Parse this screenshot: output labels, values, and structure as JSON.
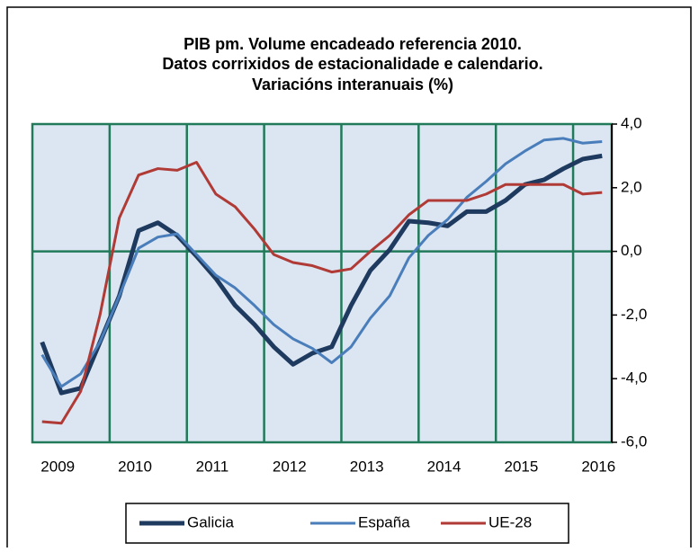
{
  "chart_data": {
    "type": "line",
    "title": [
      "PIB pm. Volume encadeado referencia 2010.",
      "Datos corrixidos de estacionalidade e calendario.",
      "Variacións interanuais (%)"
    ],
    "categories": [
      null,
      "2009",
      null,
      null,
      null,
      "2010",
      null,
      null,
      null,
      "2011",
      null,
      null,
      null,
      "2012",
      null,
      null,
      null,
      "2013",
      null,
      null,
      null,
      "2014",
      null,
      null,
      null,
      "2015",
      null,
      null,
      null,
      "2016"
    ],
    "series": [
      {
        "name": "Galicia",
        "color": "#1f3a5f",
        "values": [
          -2.85,
          -4.45,
          -4.3,
          -2.85,
          -1.4,
          0.65,
          0.9,
          0.5,
          -0.15,
          -0.85,
          -1.7,
          -2.3,
          -3.0,
          -3.55,
          -3.2,
          -3.0,
          -1.7,
          -0.6,
          0.05,
          0.95,
          0.9,
          0.8,
          1.25,
          1.25,
          1.6,
          2.1,
          2.25,
          2.6,
          2.9,
          3.0
        ]
      },
      {
        "name": "España",
        "color": "#4a7ebb",
        "values": [
          -3.25,
          -4.25,
          -3.85,
          -2.85,
          -1.4,
          0.1,
          0.45,
          0.55,
          -0.1,
          -0.75,
          -1.15,
          -1.7,
          -2.3,
          -2.75,
          -3.05,
          -3.5,
          -3.0,
          -2.1,
          -1.4,
          -0.2,
          0.5,
          1.0,
          1.7,
          2.2,
          2.75,
          3.15,
          3.5,
          3.55,
          3.4,
          3.45
        ]
      },
      {
        "name": "UE-28",
        "color": "#b03a36",
        "values": [
          -5.35,
          -5.4,
          -4.4,
          -2.0,
          1.05,
          2.4,
          2.6,
          2.55,
          2.8,
          1.8,
          1.4,
          0.7,
          -0.1,
          -0.35,
          -0.45,
          -0.65,
          -0.55,
          0.0,
          0.5,
          1.15,
          1.6,
          1.6,
          1.6,
          1.8,
          2.1,
          2.1,
          2.1,
          2.1,
          1.8,
          1.85
        ]
      }
    ],
    "ylim": [
      -6,
      4
    ],
    "yticks": [
      {
        "value": -6,
        "label": "-6,0"
      },
      {
        "value": -4,
        "label": "-4,0"
      },
      {
        "value": -2,
        "label": "-2,0"
      },
      {
        "value": 0,
        "label": "0,0"
      },
      {
        "value": 2,
        "label": "2,0"
      },
      {
        "value": 4,
        "label": "4,0"
      }
    ],
    "grid": true,
    "legend": "bottom"
  }
}
